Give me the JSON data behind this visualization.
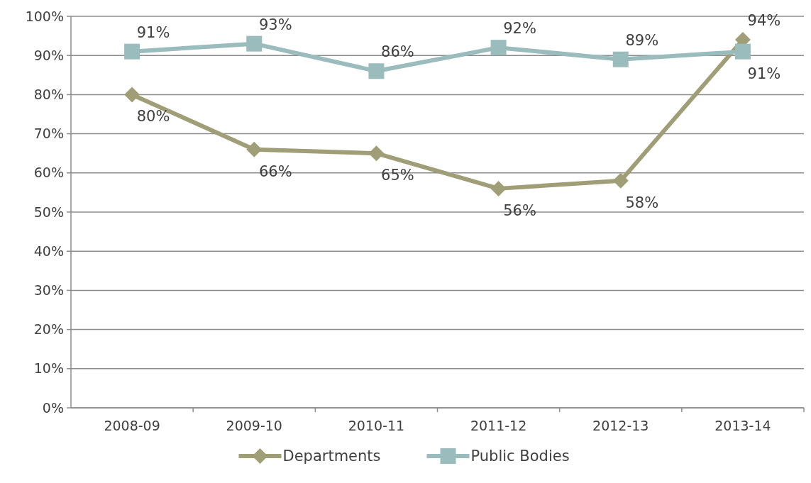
{
  "chart_data": {
    "type": "line",
    "categories": [
      "2008-09",
      "2009-10",
      "2010-11",
      "2011-12",
      "2012-13",
      "2013-14"
    ],
    "series": [
      {
        "name": "Departments",
        "color": "#a09e77",
        "marker": "diamond",
        "values": [
          80,
          66,
          65,
          56,
          58,
          94
        ],
        "value_labels": [
          "80%",
          "66%",
          "65%",
          "56%",
          "58%",
          "94%"
        ]
      },
      {
        "name": "Public Bodies",
        "color": "#9bbcbc",
        "marker": "square",
        "values": [
          91,
          93,
          86,
          92,
          89,
          91
        ],
        "value_labels": [
          "91%",
          "93%",
          "86%",
          "92%",
          "89%",
          "91%"
        ]
      }
    ],
    "ylim": [
      0,
      100
    ],
    "yticks": [
      {
        "value": 0,
        "label": "0%"
      },
      {
        "value": 10,
        "label": "10%"
      },
      {
        "value": 20,
        "label": "20%"
      },
      {
        "value": 30,
        "label": "30%"
      },
      {
        "value": 40,
        "label": "40%"
      },
      {
        "value": 50,
        "label": "50%"
      },
      {
        "value": 60,
        "label": "60%"
      },
      {
        "value": 70,
        "label": "70%"
      },
      {
        "value": 80,
        "label": "80%"
      },
      {
        "value": 90,
        "label": "90%"
      },
      {
        "value": 100,
        "label": "100%"
      }
    ],
    "grid": "y",
    "legend": "bottom"
  }
}
